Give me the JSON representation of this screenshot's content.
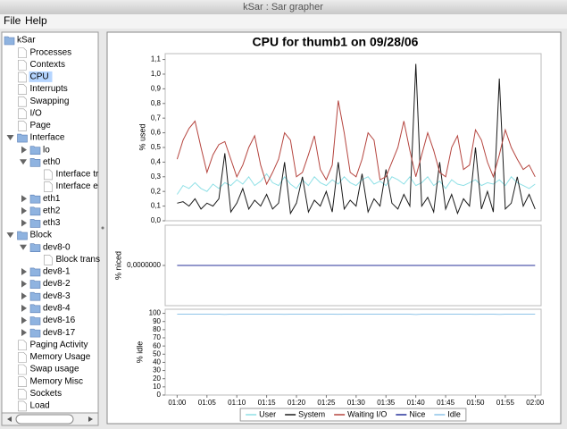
{
  "window": {
    "title": "kSar : Sar grapher"
  },
  "menu": [
    "File",
    "Help"
  ],
  "tree": {
    "label": "kSar",
    "folder": true,
    "children": [
      {
        "label": "Processes"
      },
      {
        "label": "Contexts"
      },
      {
        "label": "CPU",
        "selected": true
      },
      {
        "label": "Interrupts"
      },
      {
        "label": "Swapping"
      },
      {
        "label": "I/O"
      },
      {
        "label": "Page"
      },
      {
        "label": "Interface",
        "folder": true,
        "children": [
          {
            "label": "lo",
            "folder": true
          },
          {
            "label": "eth0",
            "folder": true,
            "children": [
              {
                "label": "Interface tr"
              },
              {
                "label": "Interface e"
              }
            ]
          },
          {
            "label": "eth1",
            "folder": true
          },
          {
            "label": "eth2",
            "folder": true
          },
          {
            "label": "eth3",
            "folder": true
          }
        ]
      },
      {
        "label": "Block",
        "folder": true,
        "children": [
          {
            "label": "dev8-0",
            "folder": true,
            "children": [
              {
                "label": "Block trans"
              }
            ]
          },
          {
            "label": "dev8-1",
            "folder": true
          },
          {
            "label": "dev8-2",
            "folder": true
          },
          {
            "label": "dev8-3",
            "folder": true
          },
          {
            "label": "dev8-4",
            "folder": true
          },
          {
            "label": "dev8-16",
            "folder": true
          },
          {
            "label": "dev8-17",
            "folder": true
          }
        ]
      },
      {
        "label": "Paging Activity"
      },
      {
        "label": "Memory Usage"
      },
      {
        "label": "Swap usage"
      },
      {
        "label": "Memory Misc"
      },
      {
        "label": "Sockets"
      },
      {
        "label": "Load"
      }
    ]
  },
  "chart_data": [
    {
      "type": "line",
      "title": "CPU for thumb1 on 09/28/06",
      "ylabel": "% used",
      "x": [
        "01:00",
        "01:01",
        "01:02",
        "01:03",
        "01:04",
        "01:05",
        "01:06",
        "01:07",
        "01:08",
        "01:09",
        "01:10",
        "01:11",
        "01:12",
        "01:13",
        "01:14",
        "01:15",
        "01:16",
        "01:17",
        "01:18",
        "01:19",
        "01:20",
        "01:21",
        "01:22",
        "01:23",
        "01:24",
        "01:25",
        "01:26",
        "01:27",
        "01:28",
        "01:29",
        "01:30",
        "01:31",
        "01:32",
        "01:33",
        "01:34",
        "01:35",
        "01:36",
        "01:37",
        "01:38",
        "01:39",
        "01:40",
        "01:41",
        "01:42",
        "01:43",
        "01:44",
        "01:45",
        "01:46",
        "01:47",
        "01:48",
        "01:49",
        "01:50",
        "01:51",
        "01:52",
        "01:53",
        "01:54",
        "01:55",
        "01:56",
        "01:57",
        "01:58",
        "01:59",
        "02:00"
      ],
      "xlim": [
        "00:58",
        "02:01"
      ],
      "ylim": [
        0,
        1.14
      ],
      "yticks": [
        {
          "value": 0,
          "label": "0,0"
        },
        {
          "value": 0.1,
          "label": "0,1"
        },
        {
          "value": 0.2,
          "label": "0,2"
        },
        {
          "value": 0.3,
          "label": "0,3"
        },
        {
          "value": 0.4,
          "label": "0,4"
        },
        {
          "value": 0.5,
          "label": "0,5"
        },
        {
          "value": 0.6,
          "label": "0,6"
        },
        {
          "value": 0.7,
          "label": "0,7"
        },
        {
          "value": 0.8,
          "label": "0,8"
        },
        {
          "value": 0.9,
          "label": "0,9"
        },
        {
          "value": 1.0,
          "label": "1,0"
        },
        {
          "value": 1.1,
          "label": "1,1"
        }
      ],
      "series": [
        {
          "name": "User",
          "color": "#8fe0e6",
          "values": [
            0.18,
            0.24,
            0.22,
            0.26,
            0.22,
            0.2,
            0.25,
            0.22,
            0.26,
            0.24,
            0.28,
            0.25,
            0.3,
            0.24,
            0.27,
            0.32,
            0.26,
            0.24,
            0.3,
            0.25,
            0.22,
            0.28,
            0.24,
            0.3,
            0.26,
            0.24,
            0.28,
            0.25,
            0.3,
            0.26,
            0.24,
            0.28,
            0.3,
            0.25,
            0.27,
            0.24,
            0.3,
            0.28,
            0.25,
            0.3,
            0.24,
            0.26,
            0.3,
            0.24,
            0.27,
            0.22,
            0.28,
            0.25,
            0.24,
            0.26,
            0.28,
            0.24,
            0.26,
            0.25,
            0.28,
            0.24,
            0.3,
            0.26,
            0.24,
            0.22,
            0.25
          ]
        },
        {
          "name": "System",
          "color": "#1a1a1a",
          "values": [
            0.12,
            0.13,
            0.1,
            0.15,
            0.08,
            0.12,
            0.1,
            0.15,
            0.46,
            0.06,
            0.12,
            0.22,
            0.08,
            0.14,
            0.1,
            0.18,
            0.08,
            0.12,
            0.4,
            0.05,
            0.12,
            0.3,
            0.06,
            0.14,
            0.1,
            0.2,
            0.06,
            0.4,
            0.08,
            0.14,
            0.1,
            0.32,
            0.06,
            0.15,
            0.1,
            0.35,
            0.12,
            0.08,
            0.18,
            0.1,
            1.07,
            0.1,
            0.16,
            0.06,
            0.4,
            0.08,
            0.18,
            0.05,
            0.15,
            0.1,
            0.5,
            0.08,
            0.2,
            0.06,
            0.97,
            0.08,
            0.12,
            0.3,
            0.1,
            0.18,
            0.08
          ]
        },
        {
          "name": "Waiting I/O",
          "color": "#b5453f",
          "values": [
            0.42,
            0.55,
            0.63,
            0.68,
            0.5,
            0.33,
            0.45,
            0.52,
            0.54,
            0.42,
            0.3,
            0.38,
            0.5,
            0.58,
            0.38,
            0.25,
            0.33,
            0.42,
            0.6,
            0.55,
            0.3,
            0.33,
            0.45,
            0.58,
            0.35,
            0.28,
            0.38,
            0.82,
            0.6,
            0.33,
            0.3,
            0.42,
            0.6,
            0.55,
            0.28,
            0.3,
            0.4,
            0.5,
            0.68,
            0.48,
            0.3,
            0.45,
            0.6,
            0.48,
            0.33,
            0.3,
            0.5,
            0.58,
            0.35,
            0.38,
            0.62,
            0.55,
            0.4,
            0.3,
            0.45,
            0.62,
            0.5,
            0.42,
            0.35,
            0.38,
            0.3
          ]
        }
      ]
    },
    {
      "type": "line",
      "ylabel": "% niced",
      "x": [
        "01:00",
        "01:01",
        "01:02",
        "01:03",
        "01:04",
        "01:05",
        "01:06",
        "01:07",
        "01:08",
        "01:09",
        "01:10",
        "01:11",
        "01:12",
        "01:13",
        "01:14",
        "01:15",
        "01:16",
        "01:17",
        "01:18",
        "01:19",
        "01:20",
        "01:21",
        "01:22",
        "01:23",
        "01:24",
        "01:25",
        "01:26",
        "01:27",
        "01:28",
        "01:29",
        "01:30",
        "01:31",
        "01:32",
        "01:33",
        "01:34",
        "01:35",
        "01:36",
        "01:37",
        "01:38",
        "01:39",
        "01:40",
        "01:41",
        "01:42",
        "01:43",
        "01:44",
        "01:45",
        "01:46",
        "01:47",
        "01:48",
        "01:49",
        "01:50",
        "01:51",
        "01:52",
        "01:53",
        "01:54",
        "01:55",
        "01:56",
        "01:57",
        "01:58",
        "01:59",
        "02:00"
      ],
      "xlim": [
        "00:58",
        "02:01"
      ],
      "ylim": [
        -1,
        1
      ],
      "yticks": [
        {
          "value": 0,
          "label": "0,0000000"
        }
      ],
      "series": [
        {
          "name": "Nice",
          "color": "#27329a",
          "values": [
            0,
            0,
            0,
            0,
            0,
            0,
            0,
            0,
            0,
            0,
            0,
            0,
            0,
            0,
            0,
            0,
            0,
            0,
            0,
            0,
            0,
            0,
            0,
            0,
            0,
            0,
            0,
            0,
            0,
            0,
            0,
            0,
            0,
            0,
            0,
            0,
            0,
            0,
            0,
            0,
            0,
            0,
            0,
            0,
            0,
            0,
            0,
            0,
            0,
            0,
            0,
            0,
            0,
            0,
            0,
            0,
            0,
            0,
            0,
            0,
            0
          ]
        }
      ]
    },
    {
      "type": "line",
      "ylabel": "% idle",
      "x": [
        "01:00",
        "01:01",
        "01:02",
        "01:03",
        "01:04",
        "01:05",
        "01:06",
        "01:07",
        "01:08",
        "01:09",
        "01:10",
        "01:11",
        "01:12",
        "01:13",
        "01:14",
        "01:15",
        "01:16",
        "01:17",
        "01:18",
        "01:19",
        "01:20",
        "01:21",
        "01:22",
        "01:23",
        "01:24",
        "01:25",
        "01:26",
        "01:27",
        "01:28",
        "01:29",
        "01:30",
        "01:31",
        "01:32",
        "01:33",
        "01:34",
        "01:35",
        "01:36",
        "01:37",
        "01:38",
        "01:39",
        "01:40",
        "01:41",
        "01:42",
        "01:43",
        "01:44",
        "01:45",
        "01:46",
        "01:47",
        "01:48",
        "01:49",
        "01:50",
        "01:51",
        "01:52",
        "01:53",
        "01:54",
        "01:55",
        "01:56",
        "01:57",
        "01:58",
        "01:59",
        "02:00"
      ],
      "xlim": [
        "00:58",
        "02:01"
      ],
      "ylim": [
        0,
        105
      ],
      "xticks": [
        "01:00",
        "01:05",
        "01:10",
        "01:15",
        "01:20",
        "01:25",
        "01:30",
        "01:35",
        "01:40",
        "01:45",
        "01:50",
        "01:55",
        "02:00"
      ],
      "yticks": [
        0,
        10,
        20,
        30,
        40,
        50,
        60,
        70,
        80,
        90,
        100
      ],
      "series": [
        {
          "name": "Idle",
          "color": "#8ec4e8",
          "values": [
            99,
            99,
            99,
            99,
            99,
            99,
            99,
            99,
            98.8,
            99,
            99,
            99,
            99,
            99,
            99,
            99,
            99,
            99,
            98.9,
            99,
            99,
            99,
            99,
            99,
            99,
            99,
            99,
            98.9,
            99,
            99,
            99,
            99,
            99,
            99,
            99,
            99,
            99,
            99,
            99,
            99,
            98.6,
            99,
            99,
            99,
            99,
            99,
            99,
            99,
            99,
            99,
            98.9,
            99,
            99,
            99,
            98.7,
            99,
            99,
            99,
            99,
            99,
            99
          ]
        }
      ]
    }
  ]
}
